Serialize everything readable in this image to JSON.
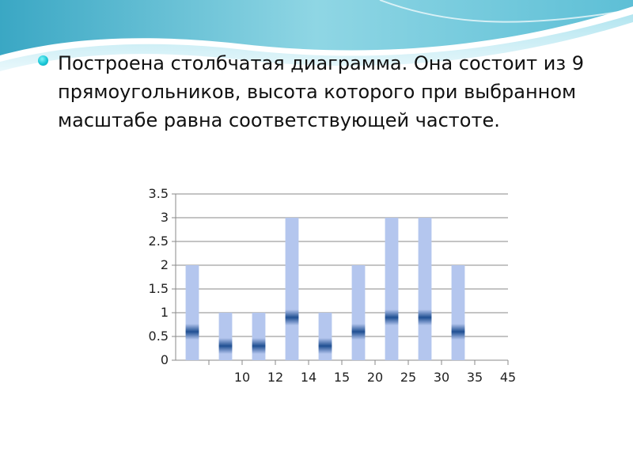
{
  "slide": {
    "bullet_text": "Построена столбчатая диаграмма. Она состоит из 9 прямоугольников, высота которого при  выбранном масштабе равна соответствующей частоте."
  },
  "theme": {
    "bar_color": "#b4c6ee",
    "bar_stripe_color": "#1f4f92",
    "grid_color": "#8a8a8a",
    "bullet_color": "#19c6d6",
    "wave_color": "#6cc3d6"
  },
  "chart_data": {
    "type": "bar",
    "categories": [
      "",
      "10",
      "12",
      "14",
      "15",
      "20",
      "25",
      "30",
      "35",
      "45"
    ],
    "values": [
      2,
      1,
      1,
      3,
      1,
      2,
      3,
      3,
      2,
      null
    ],
    "ylim": [
      0,
      3.5
    ],
    "yticks": [
      "0",
      "0.5",
      "1",
      "1.5",
      "2",
      "2.5",
      "3",
      "3.5"
    ],
    "grid": true,
    "legend": "none"
  }
}
